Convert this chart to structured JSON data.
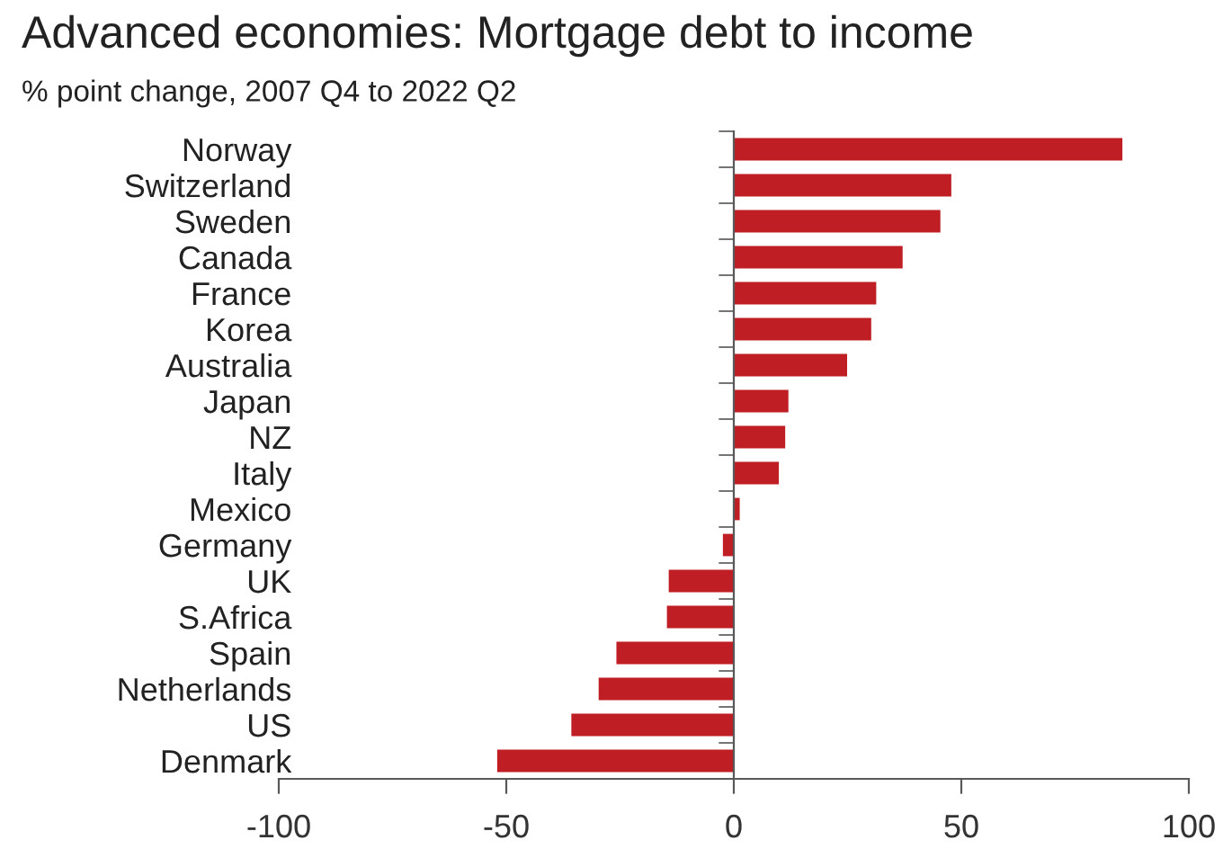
{
  "chart_data": {
    "type": "bar",
    "orientation": "horizontal",
    "title": "Advanced economies: Mortgage debt to income",
    "subtitle": "% point change, 2007 Q4 to 2022 Q2",
    "categories": [
      "Norway",
      "Switzerland",
      "Sweden",
      "Canada",
      "France",
      "Korea",
      "Australia",
      "Japan",
      "NZ",
      "Italy",
      "Mexico",
      "Germany",
      "UK",
      "S.Africa",
      "Spain",
      "Netherlands",
      "US",
      "Denmark"
    ],
    "values": [
      85.4,
      47.8,
      45.4,
      37.1,
      31.3,
      30.2,
      24.9,
      12.0,
      11.3,
      9.9,
      1.3,
      -2.4,
      -14.3,
      -14.7,
      -25.8,
      -29.7,
      -35.7,
      -52.0
    ],
    "color": "#be1e24",
    "xlim": [
      -100,
      100
    ],
    "xticks": [
      -100,
      -50,
      0,
      50,
      100
    ]
  }
}
